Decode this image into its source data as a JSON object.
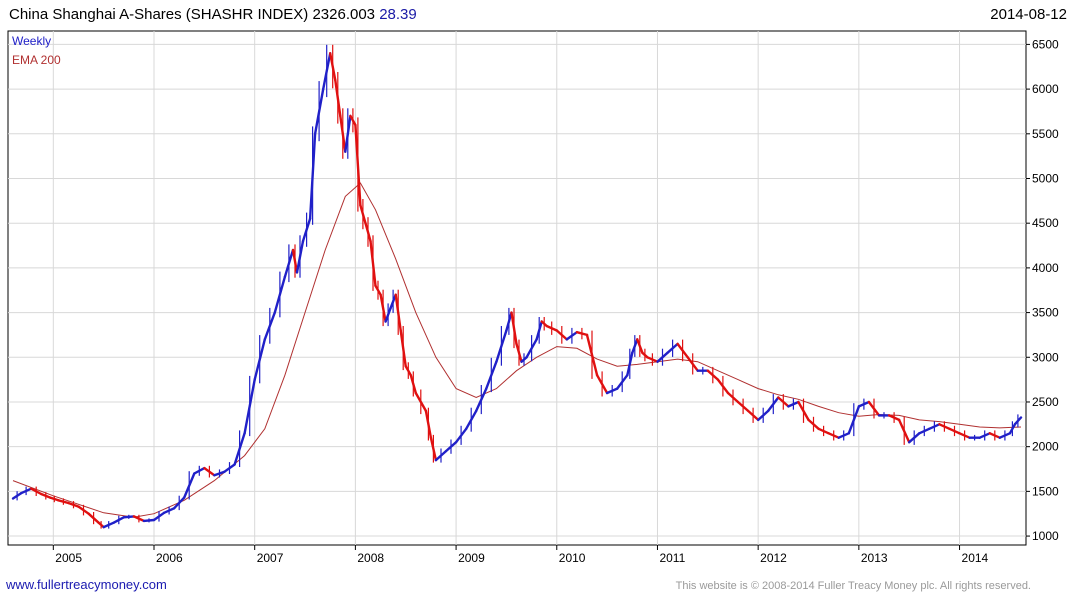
{
  "header": {
    "title": "China Shanghai A-Shares (SHASHR INDEX) 2326.003",
    "change": "28.39",
    "date": "2014-08-12"
  },
  "footer": {
    "site": "www.fullertreacymoney.com",
    "copyright": "This website is © 2008-2014 Fuller Treacy Money plc. All rights reserved."
  },
  "colors": {
    "up": "#2020c8",
    "down": "#e01010",
    "ema": "#b03030",
    "grid": "#d8d8d8",
    "axis": "#000000"
  },
  "chart_data": {
    "type": "line",
    "title": "China Shanghai A-Shares (SHASHR INDEX) 2326.003",
    "frequency": "Weekly",
    "xlim": [
      2004.55,
      2014.66
    ],
    "ylim": [
      900,
      6650
    ],
    "y_ticks": [
      1000,
      1500,
      2000,
      2500,
      3000,
      3500,
      4000,
      4500,
      5000,
      5500,
      6000,
      6500
    ],
    "x_ticks": [
      2005,
      2006,
      2007,
      2008,
      2009,
      2010,
      2011,
      2012,
      2013,
      2014
    ],
    "grid": true,
    "legend": "top-left",
    "series": [
      {
        "name": "Weekly",
        "x": [
          2004.6,
          2004.68,
          2004.78,
          2004.88,
          2004.97,
          2005.05,
          2005.15,
          2005.25,
          2005.35,
          2005.45,
          2005.5,
          2005.6,
          2005.7,
          2005.8,
          2005.9,
          2006.0,
          2006.1,
          2006.2,
          2006.3,
          2006.4,
          2006.5,
          2006.6,
          2006.7,
          2006.8,
          2006.9,
          2007.0,
          2007.1,
          2007.2,
          2007.3,
          2007.38,
          2007.42,
          2007.48,
          2007.55,
          2007.6,
          2007.68,
          2007.75,
          2007.8,
          2007.85,
          2007.9,
          2007.95,
          2008.0,
          2008.05,
          2008.1,
          2008.15,
          2008.2,
          2008.25,
          2008.3,
          2008.35,
          2008.4,
          2008.45,
          2008.5,
          2008.55,
          2008.6,
          2008.7,
          2008.75,
          2008.8,
          2008.9,
          2009.0,
          2009.1,
          2009.2,
          2009.3,
          2009.4,
          2009.5,
          2009.55,
          2009.6,
          2009.65,
          2009.7,
          2009.8,
          2009.85,
          2009.9,
          2010.0,
          2010.1,
          2010.2,
          2010.3,
          2010.4,
          2010.5,
          2010.6,
          2010.7,
          2010.75,
          2010.8,
          2010.85,
          2010.9,
          2011.0,
          2011.1,
          2011.2,
          2011.3,
          2011.4,
          2011.5,
          2011.6,
          2011.7,
          2011.8,
          2011.9,
          2012.0,
          2012.1,
          2012.2,
          2012.3,
          2012.4,
          2012.5,
          2012.6,
          2012.7,
          2012.8,
          2012.9,
          2013.0,
          2013.1,
          2013.2,
          2013.3,
          2013.4,
          2013.5,
          2013.6,
          2013.7,
          2013.8,
          2013.9,
          2014.0,
          2014.1,
          2014.2,
          2014.3,
          2014.4,
          2014.5,
          2014.55,
          2014.61
        ],
        "values": [
          1420,
          1480,
          1530,
          1470,
          1430,
          1400,
          1370,
          1330,
          1250,
          1150,
          1100,
          1150,
          1210,
          1220,
          1170,
          1180,
          1260,
          1310,
          1430,
          1700,
          1760,
          1680,
          1720,
          1800,
          2150,
          2750,
          3200,
          3500,
          3900,
          4200,
          3950,
          4300,
          4550,
          5500,
          6000,
          6400,
          6100,
          5700,
          5300,
          5700,
          5600,
          4700,
          4500,
          4300,
          3800,
          3700,
          3400,
          3550,
          3700,
          3300,
          2900,
          2800,
          2600,
          2400,
          2100,
          1850,
          1950,
          2050,
          2200,
          2400,
          2650,
          2950,
          3300,
          3500,
          3150,
          2950,
          3000,
          3200,
          3400,
          3350,
          3300,
          3200,
          3280,
          3250,
          2800,
          2600,
          2650,
          2800,
          3050,
          3200,
          3050,
          3000,
          2950,
          3050,
          3150,
          3000,
          2850,
          2850,
          2750,
          2600,
          2500,
          2400,
          2300,
          2400,
          2550,
          2450,
          2500,
          2300,
          2200,
          2150,
          2100,
          2150,
          2450,
          2500,
          2350,
          2350,
          2300,
          2050,
          2150,
          2200,
          2250,
          2200,
          2150,
          2100,
          2100,
          2150,
          2100,
          2150,
          2250,
          2326
        ]
      },
      {
        "name": "EMA 200",
        "x": [
          2004.6,
          2005.0,
          2005.5,
          2005.8,
          2006.0,
          2006.3,
          2006.6,
          2006.9,
          2007.1,
          2007.3,
          2007.5,
          2007.7,
          2007.9,
          2008.05,
          2008.2,
          2008.4,
          2008.6,
          2008.8,
          2009.0,
          2009.2,
          2009.4,
          2009.6,
          2009.8,
          2010.0,
          2010.2,
          2010.4,
          2010.6,
          2010.8,
          2011.0,
          2011.2,
          2011.4,
          2011.6,
          2011.8,
          2012.0,
          2012.2,
          2012.4,
          2012.6,
          2012.8,
          2013.0,
          2013.2,
          2013.4,
          2013.6,
          2013.8,
          2014.0,
          2014.2,
          2014.4,
          2014.61
        ],
        "values": [
          1620,
          1450,
          1260,
          1210,
          1250,
          1400,
          1620,
          1900,
          2200,
          2800,
          3500,
          4200,
          4800,
          4950,
          4650,
          4100,
          3500,
          3000,
          2650,
          2550,
          2650,
          2850,
          3000,
          3120,
          3100,
          2980,
          2900,
          2920,
          2950,
          2980,
          2950,
          2850,
          2750,
          2650,
          2580,
          2530,
          2450,
          2380,
          2340,
          2360,
          2350,
          2300,
          2280,
          2250,
          2220,
          2210,
          2220
        ]
      }
    ]
  }
}
